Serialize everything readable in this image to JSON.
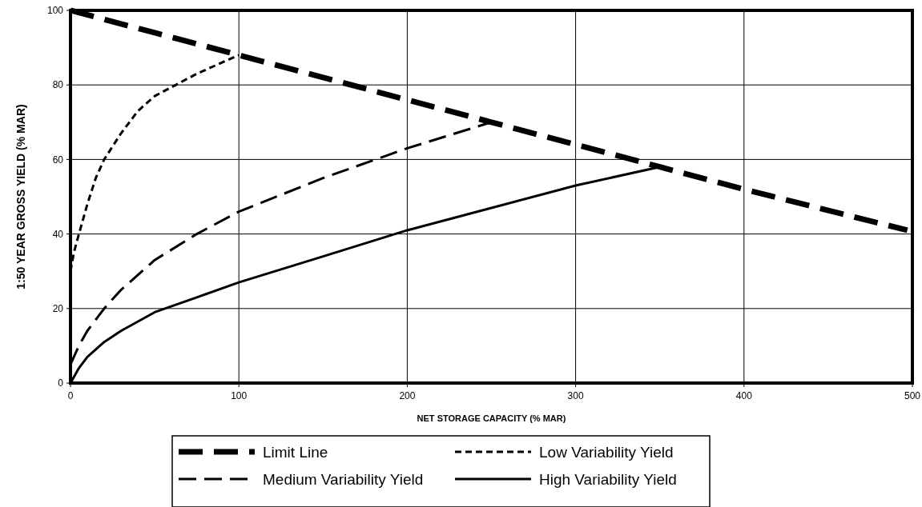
{
  "chart_data": {
    "type": "line",
    "xlabel": "NET STORAGE CAPACITY (% MAR)",
    "ylabel": "1:50 YEAR GROSS YIELD (% MAR)",
    "xlim": [
      0,
      500
    ],
    "ylim": [
      0,
      100
    ],
    "xticks": [
      0,
      100,
      200,
      300,
      400,
      500
    ],
    "yticks": [
      0,
      20,
      40,
      60,
      80,
      100
    ],
    "grid": true,
    "legend": "bottom",
    "marker": "none",
    "series": [
      {
        "name": "Limit Line",
        "color": "#000000",
        "line_style": "dashed",
        "x": [
          0,
          50,
          100,
          150,
          200,
          250,
          300,
          350,
          400,
          497
        ],
        "values": [
          100,
          94,
          88,
          82,
          76,
          70,
          64,
          58,
          52,
          41
        ]
      },
      {
        "name": "Low Variability Yield",
        "color": "#000000",
        "line_style": "dotted",
        "x": [
          0,
          2,
          5,
          10,
          15,
          20,
          30,
          40,
          50,
          75,
          100
        ],
        "values": [
          30,
          35,
          40,
          48,
          55,
          60,
          67,
          73,
          77,
          83,
          88
        ]
      },
      {
        "name": "Medium Variability Yield",
        "color": "#000000",
        "line_style": "dashed",
        "x": [
          0,
          5,
          10,
          20,
          30,
          50,
          75,
          100,
          150,
          200,
          250
        ],
        "values": [
          5,
          10,
          14,
          20,
          25,
          33,
          40,
          46,
          55,
          63,
          70
        ]
      },
      {
        "name": "High Variability Yield",
        "color": "#000000",
        "line_style": "solid",
        "x": [
          0,
          5,
          10,
          20,
          30,
          50,
          75,
          100,
          150,
          200,
          250,
          300,
          350
        ],
        "values": [
          0,
          4,
          7,
          11,
          14,
          19,
          23,
          27,
          34,
          41,
          47,
          53,
          58
        ]
      }
    ]
  }
}
